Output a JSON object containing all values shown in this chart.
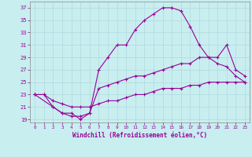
{
  "xlabel": "Windchill (Refroidissement éolien,°C)",
  "background_color": "#c8eef0",
  "grid_color": "#b0d8dc",
  "line_color": "#990099",
  "xlim": [
    -0.5,
    23.5
  ],
  "ylim": [
    18.5,
    38
  ],
  "xticks": [
    0,
    1,
    2,
    3,
    4,
    5,
    6,
    7,
    8,
    9,
    10,
    11,
    12,
    13,
    14,
    15,
    16,
    17,
    18,
    19,
    20,
    21,
    22,
    23
  ],
  "yticks": [
    19,
    21,
    23,
    25,
    27,
    29,
    31,
    33,
    35,
    37
  ],
  "line1_x": [
    0,
    1,
    2,
    3,
    4,
    5,
    6,
    7,
    8,
    9,
    10,
    11,
    12,
    13,
    14,
    15,
    16,
    17,
    18,
    19,
    20,
    21,
    22,
    23
  ],
  "line1_y": [
    23,
    23,
    21,
    20,
    20,
    19,
    20,
    27,
    29,
    31,
    31,
    33.5,
    35,
    36,
    37,
    37,
    36.5,
    34,
    31,
    29,
    28,
    27.5,
    26,
    25
  ],
  "line2_x": [
    0,
    2,
    3,
    4,
    5,
    6,
    7,
    8,
    9,
    10,
    11,
    12,
    13,
    14,
    15,
    16,
    17,
    18,
    19,
    20,
    21,
    22,
    23
  ],
  "line2_y": [
    23,
    21,
    20,
    19.5,
    19.5,
    20,
    24,
    24.5,
    25,
    25.5,
    26,
    26,
    26.5,
    27,
    27.5,
    28,
    28,
    29,
    29,
    29,
    31,
    27,
    26
  ],
  "line3_x": [
    0,
    1,
    2,
    3,
    4,
    5,
    6,
    7,
    8,
    9,
    10,
    11,
    12,
    13,
    14,
    15,
    16,
    17,
    18,
    19,
    20,
    21,
    22,
    23
  ],
  "line3_y": [
    23,
    23,
    22,
    21.5,
    21,
    21,
    21,
    21.5,
    22,
    22,
    22.5,
    23,
    23,
    23.5,
    24,
    24,
    24,
    24.5,
    24.5,
    25,
    25,
    25,
    25,
    25
  ]
}
